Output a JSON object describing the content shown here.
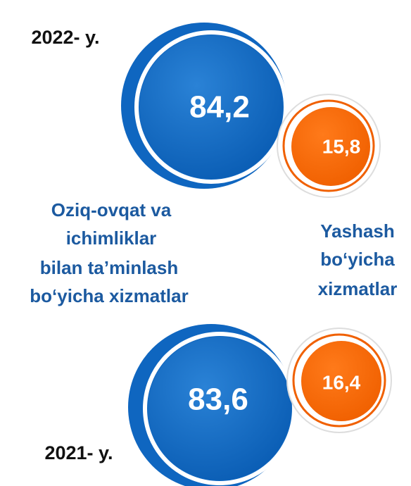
{
  "years": [
    {
      "label": "2022- y.",
      "food_services": "84,2",
      "accommodation": "15,8"
    },
    {
      "label": "2021- y.",
      "food_services": "83,6",
      "accommodation": "16,4"
    }
  ],
  "legend": {
    "food_services": [
      "Oziq-ovqat va",
      "ichimliklar",
      "bilan ta’minlash",
      "bo‘yicha xizmatlar"
    ],
    "accommodation": [
      "Yashash",
      "bo‘yicha",
      "xizmatlar"
    ]
  }
}
